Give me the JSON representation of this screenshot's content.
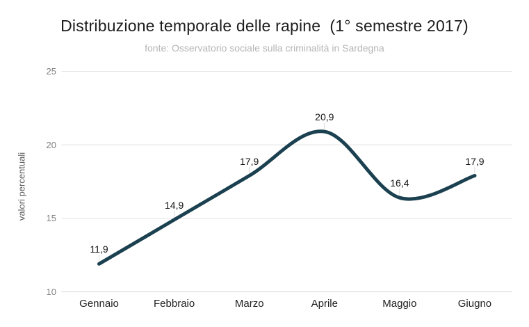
{
  "header": {
    "title": "Distribuzione temporale delle rapine  (1° semestre 2017)",
    "subtitle": "fonte: Osservatorio sociale sulla criminalità in Sardegna"
  },
  "chart_data": {
    "type": "line",
    "smooth": true,
    "title": "Distribuzione temporale delle rapine  (1° semestre 2017)",
    "subtitle": "fonte: Osservatorio sociale sulla criminalità in Sardegna",
    "categories": [
      "Gennaio",
      "Febbraio",
      "Marzo",
      "Aprile",
      "Maggio",
      "Giugno"
    ],
    "values": [
      11.9,
      14.9,
      17.9,
      20.9,
      16.4,
      17.9
    ],
    "value_labels": [
      "11,9",
      "14,9",
      "17,9",
      "20,9",
      "16,4",
      "17,9"
    ],
    "xlabel": "",
    "ylabel": "valori percentuali",
    "ylim": [
      10,
      25
    ],
    "yticks": [
      10,
      15,
      20,
      25
    ],
    "ytick_labels": [
      "10",
      "15",
      "20",
      "25"
    ],
    "grid": true,
    "legend": "none",
    "colors": {
      "line": "#1b4050",
      "gridline": "#e2e2e2",
      "baseline": "#d2d2d2",
      "whisker": "#d9d9d9",
      "background": "#ffffff"
    }
  }
}
